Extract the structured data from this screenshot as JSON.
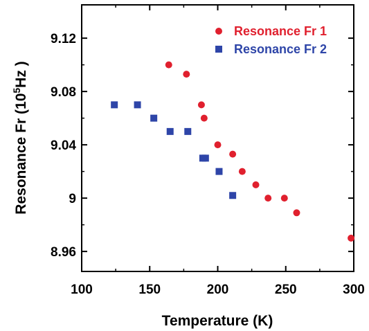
{
  "chart_data": {
    "type": "scatter",
    "xlabel": "Temperature  (K)",
    "ylabel": {
      "prefix": "Resonance Fr (10",
      "superscript": "5",
      "suffix": "Hz )"
    },
    "xlim": [
      100,
      300
    ],
    "ylim": [
      8.945,
      9.145
    ],
    "xticks": [
      "100",
      "150",
      "200",
      "250",
      "300"
    ],
    "yticks": [
      "8.96",
      "9",
      "9.04",
      "9.08",
      "9.12"
    ],
    "grid": false,
    "legend_position": "top-right",
    "series": [
      {
        "name": "Resonance Fr 1",
        "marker": "circle",
        "color": "#e0202e",
        "points": [
          [
            164,
            9.1
          ],
          [
            177,
            9.093
          ],
          [
            188,
            9.07
          ],
          [
            190,
            9.06
          ],
          [
            200,
            9.04
          ],
          [
            211,
            9.033
          ],
          [
            218,
            9.02
          ],
          [
            228,
            9.01
          ],
          [
            237,
            9.0
          ],
          [
            249,
            9.0
          ],
          [
            258,
            8.989
          ],
          [
            298,
            8.97
          ]
        ]
      },
      {
        "name": "Resonance Fr 2",
        "marker": "square",
        "color": "#2e45a8",
        "points": [
          [
            124,
            9.07
          ],
          [
            141,
            9.07
          ],
          [
            153,
            9.06
          ],
          [
            165,
            9.05
          ],
          [
            178,
            9.05
          ],
          [
            189,
            9.03
          ],
          [
            191,
            9.03
          ],
          [
            201,
            9.02
          ],
          [
            211,
            9.002
          ]
        ]
      }
    ]
  }
}
